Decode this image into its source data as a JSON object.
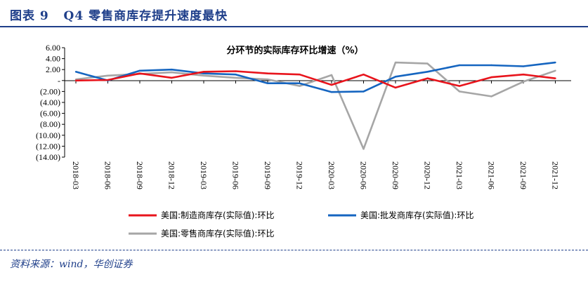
{
  "figure": {
    "label": "图表 9",
    "title": "Q4 零售商库存提升速度最快",
    "source": "资料来源：wind，华创证券"
  },
  "chart_data": {
    "type": "line",
    "title": "分环节的实际库存环比增速（%）",
    "xlabel": "",
    "ylabel": "",
    "ylim": [
      -14,
      6
    ],
    "yticks": [
      6,
      4,
      2,
      0,
      -2,
      -4,
      -6,
      -8,
      -10,
      -12,
      -14
    ],
    "ytick_labels": [
      "6.00",
      "4.00",
      "2.00",
      "-",
      "(2.00)",
      "(4.00)",
      "(6.00)",
      "(8.00)",
      "(10.00)",
      "(12.00)",
      "(14.00)"
    ],
    "categories": [
      "2018-03",
      "2018-06",
      "2018-09",
      "2018-12",
      "2019-03",
      "2019-06",
      "2019-09",
      "2019-12",
      "2020-03",
      "2020-06",
      "2020-09",
      "2020-12",
      "2021-03",
      "2021-06",
      "2021-09",
      "2021-12"
    ],
    "grid": false,
    "legend_position": "bottom",
    "series": [
      {
        "name": "美国:制造商库存(实际值):环比",
        "color": "#e8141c",
        "values": [
          0.0,
          0.1,
          1.3,
          0.5,
          1.6,
          1.7,
          1.3,
          1.1,
          -0.8,
          1.1,
          -1.3,
          0.4,
          -1.0,
          0.6,
          1.1,
          0.4
        ]
      },
      {
        "name": "美国:批发商库存(实际值):环比",
        "color": "#1565c0",
        "values": [
          1.6,
          0.0,
          1.8,
          2.0,
          1.3,
          1.1,
          -0.5,
          -0.5,
          -2.1,
          -2.0,
          0.7,
          1.6,
          2.8,
          2.8,
          2.6,
          3.3
        ]
      },
      {
        "name": "美国:零售商库存(实际值):环比",
        "color": "#a6a6a6",
        "values": [
          0.2,
          0.9,
          1.2,
          1.5,
          0.9,
          0.5,
          0.2,
          -1.0,
          1.0,
          -12.5,
          3.3,
          3.1,
          -2.0,
          -2.9,
          -0.2,
          1.8
        ]
      }
    ]
  }
}
